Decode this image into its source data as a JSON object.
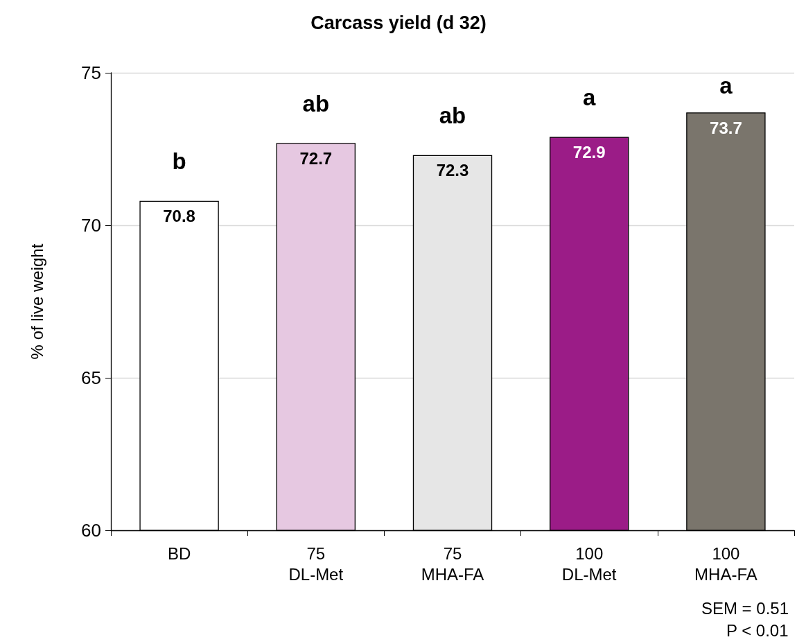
{
  "chart_data": {
    "type": "bar",
    "title": "Carcass yield (d 32)",
    "ylabel": "% of live weight",
    "categories": [
      "BD",
      "75\nDL-Met",
      "75\nMHA-FA",
      "100\nDL-Met",
      "100\nMHA-FA"
    ],
    "values": [
      70.8,
      72.7,
      72.3,
      72.9,
      73.7
    ],
    "colors": [
      "#ffffff",
      "#e6c8e1",
      "#e6e6e6",
      "#9b1c87",
      "#7a756c"
    ],
    "ylim": [
      60,
      75
    ],
    "yticks": [
      60,
      65,
      70,
      75
    ],
    "grid": "y",
    "data_labels": true,
    "annotations": [
      "b",
      "ab",
      "ab",
      "a",
      "a",
      "SEM = 0.51",
      "P < 0.01"
    ]
  }
}
